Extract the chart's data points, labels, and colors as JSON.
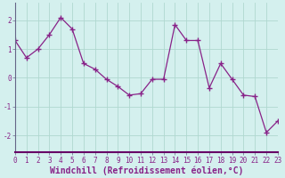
{
  "x": [
    0,
    1,
    2,
    3,
    4,
    5,
    6,
    7,
    8,
    9,
    10,
    11,
    12,
    13,
    14,
    15,
    16,
    17,
    18,
    19,
    20,
    21,
    22,
    23
  ],
  "y": [
    1.3,
    0.7,
    1.0,
    1.5,
    2.1,
    1.7,
    0.5,
    0.3,
    -0.05,
    -0.3,
    -0.6,
    -0.55,
    -0.05,
    -0.05,
    1.85,
    1.3,
    1.3,
    -0.35,
    0.5,
    -0.05,
    -0.6,
    -0.65,
    -1.9,
    -1.5
  ],
  "line_color": "#882288",
  "marker": "+",
  "marker_size": 4,
  "bg_color": "#d4f0ee",
  "grid_color": "#b0d8d0",
  "xlabel": "Windchill (Refroidissement éolien,°C)",
  "ylim": [
    -2.6,
    2.6
  ],
  "xlim": [
    0,
    23
  ],
  "yticks": [
    -2,
    -1,
    0,
    1,
    2
  ],
  "xticks": [
    0,
    1,
    2,
    3,
    4,
    5,
    6,
    7,
    8,
    9,
    10,
    11,
    12,
    13,
    14,
    15,
    16,
    17,
    18,
    19,
    20,
    21,
    22,
    23
  ],
  "tick_fontsize": 5.5,
  "xlabel_fontsize": 7.0,
  "spine_color": "#666688",
  "axis_separator_color": "#660066",
  "axis_separator_lw": 1.5
}
